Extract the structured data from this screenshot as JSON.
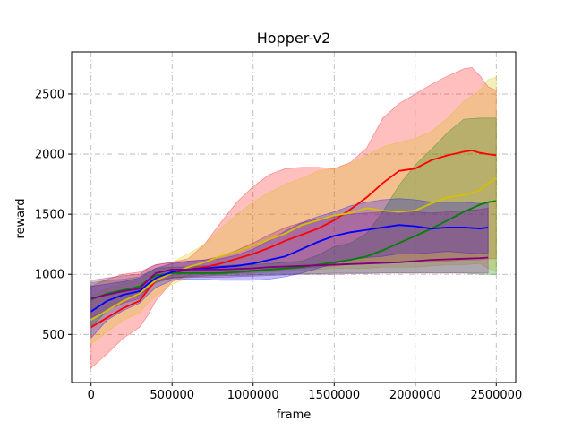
{
  "chart_data": {
    "type": "line",
    "title": "Hopper-v2",
    "xlabel": "frame",
    "ylabel": "reward",
    "xlim": [
      -120000,
      2620000
    ],
    "ylim": [
      100,
      2850
    ],
    "grid": true,
    "grid_style": "dashdot",
    "x_ticks": [
      0,
      500000,
      1000000,
      1500000,
      2000000,
      2500000
    ],
    "x_tick_labels": [
      "0",
      "500000",
      "1000000",
      "1500000",
      "2000000",
      "2500000"
    ],
    "y_ticks": [
      500,
      1000,
      1500,
      2000,
      2500
    ],
    "y_tick_labels": [
      "500",
      "1000",
      "1500",
      "2000",
      "2500"
    ],
    "series": [
      {
        "color": "#ff0000",
        "x": [
          0,
          100000,
          200000,
          300000,
          350000,
          400000,
          500000,
          600000,
          700000,
          800000,
          900000,
          1000000,
          1100000,
          1200000,
          1300000,
          1400000,
          1500000,
          1600000,
          1700000,
          1800000,
          1900000,
          2000000,
          2100000,
          2200000,
          2300000,
          2350000,
          2400000,
          2450000,
          2500000
        ],
        "mean": [
          560,
          640,
          720,
          780,
          870,
          950,
          1010,
          1040,
          1060,
          1090,
          1130,
          1170,
          1220,
          1280,
          1330,
          1380,
          1450,
          1540,
          1640,
          1760,
          1860,
          1880,
          1950,
          1990,
          2020,
          2030,
          2010,
          2000,
          1990
        ],
        "lower": [
          220,
          340,
          470,
          560,
          660,
          780,
          940,
          990,
          1000,
          1000,
          1010,
          1020,
          1030,
          1040,
          1050,
          1060,
          1070,
          1080,
          1090,
          1100,
          1100,
          1110,
          1110,
          1110,
          1120,
          1120,
          1120,
          1130,
          1130
        ],
        "upper": [
          900,
          960,
          1000,
          1020,
          1050,
          1080,
          1100,
          1130,
          1250,
          1430,
          1600,
          1730,
          1830,
          1880,
          1890,
          1890,
          1880,
          1930,
          2050,
          2300,
          2420,
          2500,
          2580,
          2650,
          2710,
          2720,
          2650,
          2560,
          2530
        ]
      },
      {
        "color": "#d4c000",
        "x": [
          0,
          100000,
          200000,
          300000,
          350000,
          400000,
          500000,
          600000,
          700000,
          800000,
          900000,
          1000000,
          1100000,
          1200000,
          1300000,
          1400000,
          1500000,
          1600000,
          1700000,
          1800000,
          1900000,
          2000000,
          2100000,
          2200000,
          2300000,
          2400000,
          2450000,
          2500000
        ],
        "mean": [
          620,
          700,
          780,
          840,
          900,
          950,
          1010,
          1060,
          1100,
          1150,
          1190,
          1240,
          1290,
          1340,
          1410,
          1450,
          1490,
          1510,
          1550,
          1530,
          1520,
          1530,
          1590,
          1640,
          1660,
          1700,
          1760,
          1800
        ],
        "lower": [
          420,
          520,
          620,
          680,
          760,
          820,
          920,
          970,
          990,
          1000,
          1005,
          1010,
          1020,
          1025,
          1030,
          1040,
          1050,
          1050,
          1050,
          1060,
          1060,
          1060,
          1070,
          1080,
          1080,
          1090,
          1050,
          1020
        ],
        "upper": [
          820,
          880,
          920,
          950,
          990,
          1030,
          1100,
          1170,
          1250,
          1380,
          1500,
          1600,
          1680,
          1750,
          1800,
          1860,
          1880,
          1920,
          1990,
          2060,
          2100,
          2130,
          2190,
          2300,
          2440,
          2530,
          2620,
          2640
        ]
      },
      {
        "color": "#008000",
        "x": [
          0,
          100000,
          200000,
          300000,
          350000,
          400000,
          500000,
          600000,
          700000,
          800000,
          900000,
          1000000,
          1100000,
          1200000,
          1300000,
          1400000,
          1500000,
          1600000,
          1700000,
          1800000,
          1900000,
          2000000,
          2100000,
          2200000,
          2300000,
          2400000,
          2450000,
          2500000
        ],
        "mean": [
          790,
          840,
          870,
          900,
          950,
          990,
          1010,
          1010,
          1010,
          1010,
          1020,
          1030,
          1040,
          1050,
          1060,
          1080,
          1100,
          1120,
          1150,
          1200,
          1260,
          1320,
          1380,
          1450,
          1520,
          1580,
          1600,
          1610
        ],
        "lower": [
          560,
          700,
          780,
          830,
          880,
          930,
          970,
          980,
          985,
          990,
          990,
          995,
          1000,
          1000,
          1005,
          1005,
          1010,
          1010,
          1010,
          1010,
          1010,
          1010,
          1010,
          1010,
          1010,
          1000,
          1000,
          1000
        ],
        "upper": [
          930,
          950,
          960,
          980,
          1020,
          1050,
          1060,
          1060,
          1070,
          1070,
          1080,
          1080,
          1090,
          1100,
          1110,
          1160,
          1230,
          1260,
          1340,
          1520,
          1740,
          1910,
          2040,
          2180,
          2290,
          2300,
          2300,
          2300
        ]
      },
      {
        "color": "#0000ff",
        "x": [
          0,
          100000,
          200000,
          300000,
          350000,
          400000,
          500000,
          600000,
          700000,
          800000,
          900000,
          1000000,
          1100000,
          1200000,
          1300000,
          1400000,
          1500000,
          1600000,
          1700000,
          1800000,
          1900000,
          2000000,
          2100000,
          2200000,
          2300000,
          2400000,
          2450000
        ],
        "mean": [
          690,
          780,
          830,
          860,
          920,
          970,
          1020,
          1040,
          1050,
          1060,
          1070,
          1090,
          1120,
          1150,
          1210,
          1270,
          1320,
          1350,
          1370,
          1390,
          1410,
          1400,
          1380,
          1390,
          1390,
          1380,
          1390
        ],
        "lower": [
          470,
          620,
          700,
          760,
          830,
          890,
          950,
          960,
          960,
          950,
          950,
          950,
          960,
          980,
          1010,
          1050,
          1090,
          1120,
          1140,
          1150,
          1170,
          1170,
          1180,
          1190,
          1180,
          1170,
          1180
        ],
        "upper": [
          900,
          920,
          940,
          970,
          1010,
          1050,
          1090,
          1110,
          1120,
          1130,
          1160,
          1210,
          1280,
          1360,
          1430,
          1480,
          1520,
          1570,
          1600,
          1620,
          1630,
          1620,
          1600,
          1600,
          1600,
          1590,
          1590
        ]
      },
      {
        "color": "#800080",
        "x": [
          0,
          100000,
          200000,
          300000,
          350000,
          400000,
          500000,
          600000,
          700000,
          800000,
          900000,
          1000000,
          1100000,
          1200000,
          1300000,
          1400000,
          1500000,
          1600000,
          1700000,
          1800000,
          1900000,
          2000000,
          2100000,
          2200000,
          2300000,
          2400000,
          2450000
        ],
        "mean": [
          800,
          830,
          860,
          880,
          950,
          1010,
          1040,
          1040,
          1040,
          1040,
          1045,
          1050,
          1060,
          1065,
          1070,
          1075,
          1080,
          1085,
          1090,
          1095,
          1100,
          1110,
          1120,
          1125,
          1130,
          1135,
          1140
        ],
        "lower": [
          640,
          700,
          760,
          800,
          880,
          940,
          970,
          975,
          975,
          975,
          980,
          985,
          990,
          995,
          1000,
          1000,
          1000,
          1005,
          1005,
          1010,
          1010,
          1010,
          1010,
          1010,
          1010,
          1010,
          1010
        ],
        "upper": [
          950,
          970,
          990,
          1000,
          1050,
          1080,
          1100,
          1110,
          1120,
          1150,
          1200,
          1260,
          1330,
          1390,
          1430,
          1460,
          1480,
          1500,
          1510,
          1520,
          1520,
          1520,
          1510,
          1520,
          1530,
          1540,
          1550
        ]
      }
    ]
  }
}
